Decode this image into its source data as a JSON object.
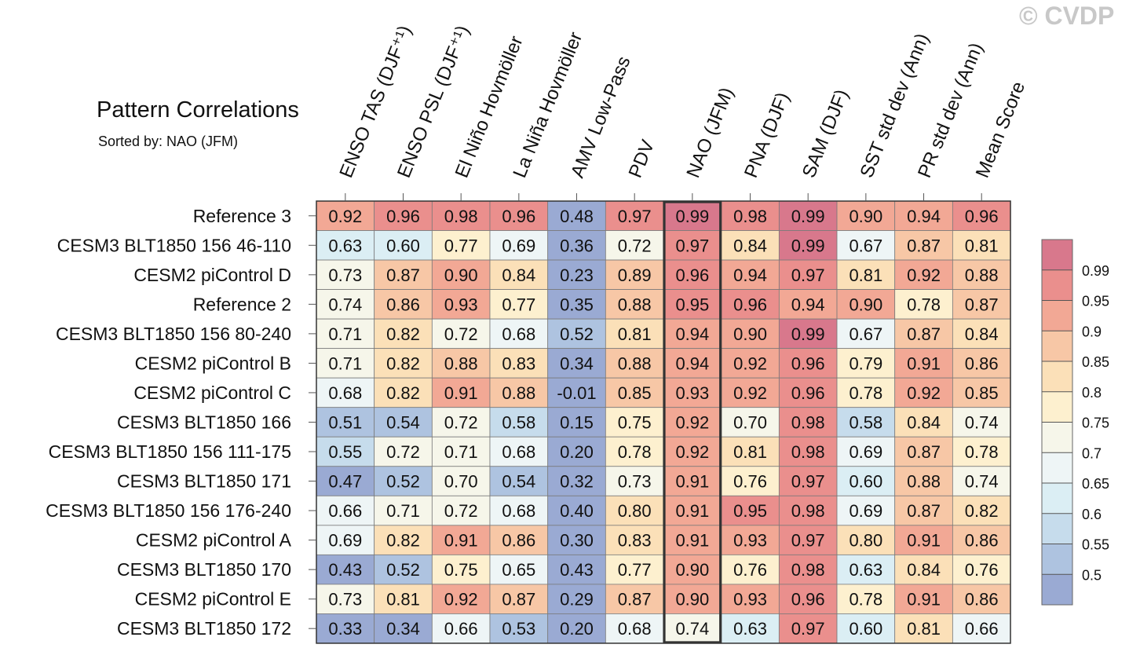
{
  "watermark": "© CVDP",
  "chart_data": {
    "type": "heatmap",
    "title": "Pattern Correlations",
    "subtitle": "Sorted by: NAO (JFM)",
    "columns": [
      "ENSO TAS (DJF⁺¹)",
      "ENSO PSL (DJF⁺¹)",
      "El Niño Hovmöller",
      "La Niña Hovmöller",
      "AMV Low-Pass",
      "PDV",
      "NAO (JFM)",
      "PNA (DJF)",
      "SAM (DJF)",
      "SST std dev (Ann)",
      "PR std dev (Ann)",
      "Mean Score"
    ],
    "highlighted_column": "NAO (JFM)",
    "rows": [
      "Reference 3",
      "CESM3 BLT1850 156 46-110",
      "CESM2 piControl D",
      "Reference 2",
      "CESM3 BLT1850 156 80-240",
      "CESM2 piControl B",
      "CESM2 piControl C",
      "CESM3 BLT1850 166",
      "CESM3 BLT1850 156 111-175",
      "CESM3 BLT1850 171",
      "CESM3 BLT1850 156 176-240",
      "CESM2 piControl A",
      "CESM3 BLT1850 170",
      "CESM2 piControl E",
      "CESM3 BLT1850 172"
    ],
    "values": [
      [
        "0.92",
        "0.96",
        "0.98",
        "0.96",
        "0.48",
        "0.97",
        "0.99",
        "0.98",
        "0.99",
        "0.90",
        "0.94",
        "0.96"
      ],
      [
        "0.63",
        "0.60",
        "0.77",
        "0.69",
        "0.36",
        "0.72",
        "0.97",
        "0.84",
        "0.99",
        "0.67",
        "0.87",
        "0.81"
      ],
      [
        "0.73",
        "0.87",
        "0.90",
        "0.84",
        "0.23",
        "0.89",
        "0.96",
        "0.94",
        "0.97",
        "0.81",
        "0.92",
        "0.88"
      ],
      [
        "0.74",
        "0.86",
        "0.93",
        "0.77",
        "0.35",
        "0.88",
        "0.95",
        "0.96",
        "0.94",
        "0.90",
        "0.78",
        "0.87"
      ],
      [
        "0.71",
        "0.82",
        "0.72",
        "0.68",
        "0.52",
        "0.81",
        "0.94",
        "0.90",
        "0.99",
        "0.67",
        "0.87",
        "0.84"
      ],
      [
        "0.71",
        "0.82",
        "0.88",
        "0.83",
        "0.34",
        "0.88",
        "0.94",
        "0.92",
        "0.96",
        "0.79",
        "0.91",
        "0.86"
      ],
      [
        "0.68",
        "0.82",
        "0.91",
        "0.88",
        "-0.01",
        "0.85",
        "0.93",
        "0.92",
        "0.96",
        "0.78",
        "0.92",
        "0.85"
      ],
      [
        "0.51",
        "0.54",
        "0.72",
        "0.58",
        "0.15",
        "0.75",
        "0.92",
        "0.70",
        "0.98",
        "0.58",
        "0.84",
        "0.74"
      ],
      [
        "0.55",
        "0.72",
        "0.71",
        "0.68",
        "0.20",
        "0.78",
        "0.92",
        "0.81",
        "0.98",
        "0.69",
        "0.87",
        "0.78"
      ],
      [
        "0.47",
        "0.52",
        "0.70",
        "0.54",
        "0.32",
        "0.73",
        "0.91",
        "0.76",
        "0.97",
        "0.60",
        "0.88",
        "0.74"
      ],
      [
        "0.66",
        "0.71",
        "0.72",
        "0.68",
        "0.40",
        "0.80",
        "0.91",
        "0.95",
        "0.98",
        "0.69",
        "0.87",
        "0.82"
      ],
      [
        "0.69",
        "0.82",
        "0.91",
        "0.86",
        "0.30",
        "0.83",
        "0.91",
        "0.93",
        "0.97",
        "0.80",
        "0.91",
        "0.86"
      ],
      [
        "0.43",
        "0.52",
        "0.75",
        "0.65",
        "0.43",
        "0.77",
        "0.90",
        "0.76",
        "0.98",
        "0.63",
        "0.84",
        "0.76"
      ],
      [
        "0.73",
        "0.81",
        "0.92",
        "0.87",
        "0.29",
        "0.87",
        "0.90",
        "0.93",
        "0.96",
        "0.78",
        "0.91",
        "0.86"
      ],
      [
        "0.33",
        "0.34",
        "0.66",
        "0.53",
        "0.20",
        "0.68",
        "0.74",
        "0.63",
        "0.97",
        "0.60",
        "0.81",
        "0.66"
      ]
    ],
    "colorbar": {
      "levels": [
        0.5,
        0.55,
        0.6,
        0.65,
        0.7,
        0.75,
        0.8,
        0.85,
        0.9,
        0.95,
        0.99
      ],
      "labels": [
        "0.5",
        "0.55",
        "0.6",
        "0.65",
        "0.7",
        "0.75",
        "0.8",
        "0.85",
        "0.9",
        "0.95",
        "0.99"
      ],
      "colors": [
        "#9aaad3",
        "#aec3e0",
        "#c6dcec",
        "#dbeef4",
        "#eef5f6",
        "#f6f6ea",
        "#fdf0cf",
        "#fbe0b8",
        "#f7c7a6",
        "#f2a895",
        "#ea8f8d",
        "#d8788c"
      ]
    }
  }
}
